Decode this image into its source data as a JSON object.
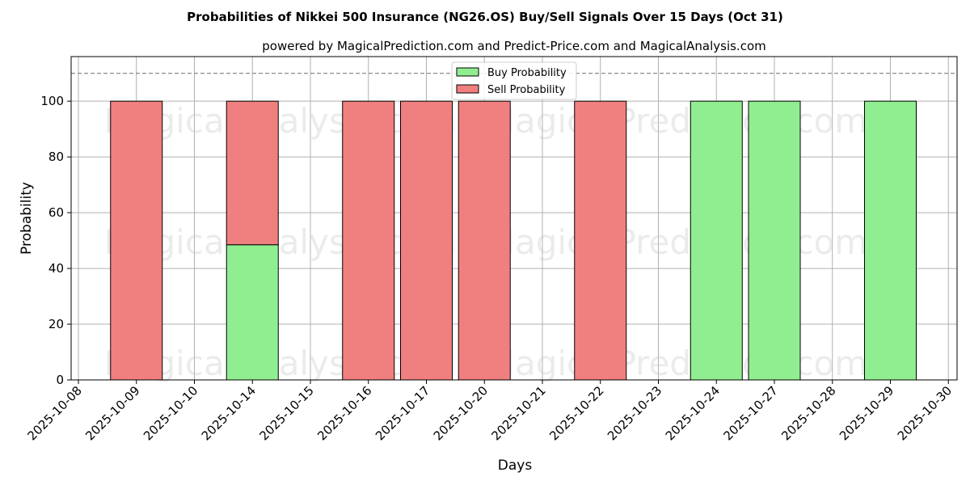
{
  "chart_data": {
    "type": "bar",
    "stacked": true,
    "title": "Probabilities of Nikkei 500 Insurance (NG26.OS) Buy/Sell Signals Over 15 Days (Oct 31)",
    "subtitle": "powered by MagicalPrediction.com and Predict-Price.com and MagicalAnalysis.com",
    "xlabel": "Days",
    "ylabel": "Probability",
    "ylim": [
      0,
      116
    ],
    "yticks": [
      0,
      20,
      40,
      60,
      80,
      100
    ],
    "reference_line": 110,
    "grid": true,
    "legend_position": "top-center",
    "x_ticks": [
      "2025-10-08",
      "2025-10-09",
      "2025-10-10",
      "2025-10-14",
      "2025-10-15",
      "2025-10-16",
      "2025-10-17",
      "2025-10-20",
      "2025-10-21",
      "2025-10-22",
      "2025-10-23",
      "2025-10-24",
      "2025-10-27",
      "2025-10-28",
      "2025-10-29",
      "2025-10-30"
    ],
    "categories": [
      "2025-10-09",
      "2025-10-14",
      "2025-10-16",
      "2025-10-17",
      "2025-10-20",
      "2025-10-22",
      "2025-10-24",
      "2025-10-27",
      "2025-10-29"
    ],
    "series": [
      {
        "name": "Buy Probability",
        "color": "#90ee90",
        "values": [
          0,
          48.5,
          0,
          0,
          0,
          0,
          100,
          100,
          100
        ]
      },
      {
        "name": "Sell Probability",
        "color": "#f08080",
        "values": [
          100,
          51.5,
          100,
          100,
          100,
          100,
          0,
          0,
          0
        ]
      }
    ]
  },
  "watermarks": [
    "MagicalAnalysis.com",
    "MagicalPrediction.com",
    "MagicalAnalysis.com",
    "MagicalPrediction.com",
    "MagicalAnalysis.com",
    "MagicalPrediction.com"
  ]
}
